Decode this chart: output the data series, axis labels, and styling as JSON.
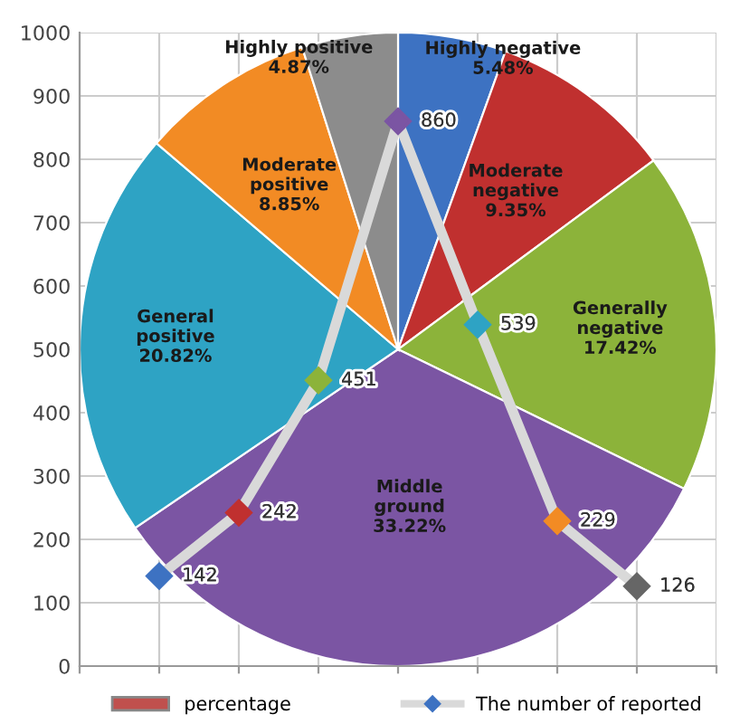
{
  "chart_data": [
    {
      "type": "pie",
      "categories": [
        "Highly negative",
        "Moderate negative",
        "Generally negative",
        "Middle ground",
        "General positive",
        "Moderate positive",
        "Highly positive"
      ],
      "series": [
        {
          "name": "percentage",
          "color": "#c0504d",
          "values": [
            5.48,
            9.35,
            17.42,
            33.22,
            20.82,
            8.85,
            4.87
          ]
        }
      ],
      "colors": [
        "#3d72c2",
        "#c0302f",
        "#8cb33a",
        "#7b55a3",
        "#2ea3c4",
        "#f28b24",
        "#8c8c8c"
      ],
      "value_labels": [
        "5.48%",
        "9.35%",
        "17.42%",
        "33.22%",
        "20.82%",
        "8.85%",
        "4.87%"
      ],
      "legend": "bottom"
    },
    {
      "type": "line",
      "categories": [
        null,
        null,
        null,
        null,
        null,
        null,
        null
      ],
      "series": [
        {
          "name": "The number of reported",
          "color": "#d9d9d9",
          "values": [
            142,
            242,
            451,
            860,
            539,
            229,
            126
          ]
        }
      ],
      "colors": [
        "#3d72c2",
        "#c0302f",
        "#8cb33a",
        "#7b55a3",
        "#2ea3c4",
        "#f28b24",
        "#666666"
      ],
      "marker": "diamond",
      "data_labels": true,
      "ylim": [
        0,
        1000
      ],
      "yticks": [
        0,
        100,
        200,
        300,
        400,
        500,
        600,
        700,
        800,
        900,
        1000
      ],
      "grid": true,
      "legend": "bottom"
    }
  ]
}
